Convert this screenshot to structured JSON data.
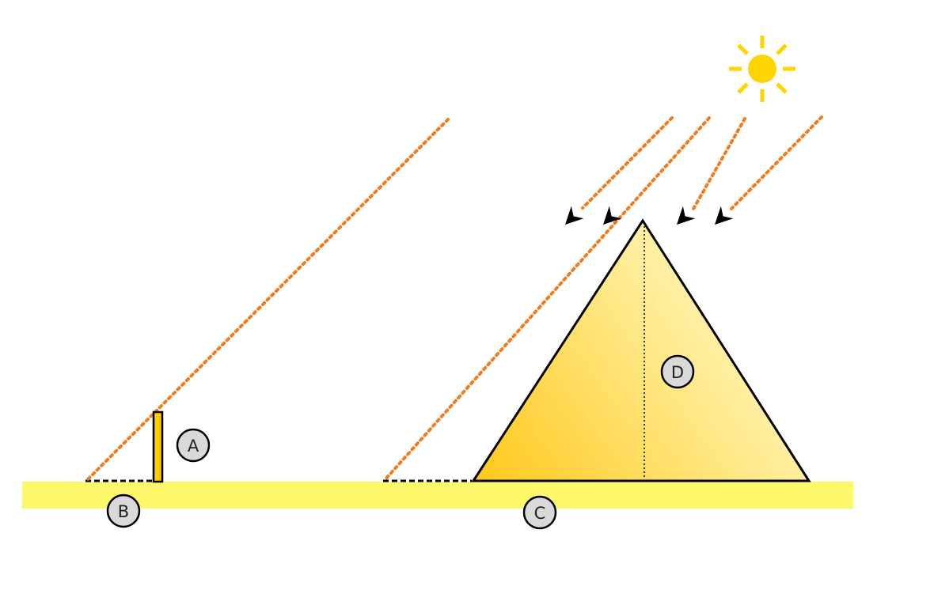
{
  "labels": {
    "a": "A",
    "b": "B",
    "c": "C",
    "d": "D"
  },
  "icons": {
    "sun": "sun-icon",
    "arrow": "arrow-head-icon"
  },
  "colors": {
    "background": "#ffffff",
    "ground": "#fdf86a",
    "ray": "#f07c1e",
    "sun": "#ffd400",
    "stick": "#ffcc00",
    "pyramid_dark": "#ffc81a",
    "pyramid_light": "#fffbd0",
    "outline": "#000000",
    "label_fill": "#d9d9d9"
  }
}
